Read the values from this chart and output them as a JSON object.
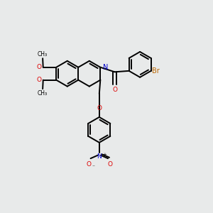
{
  "bg_color": "#e8eaea",
  "bond_color": "#000000",
  "N_color": "#0000cc",
  "O_color": "#dd0000",
  "Br_color": "#bb6600",
  "bw": 1.4,
  "R": 0.6,
  "figsize": [
    3.0,
    3.0
  ],
  "dpi": 100,
  "xlim": [
    0,
    10
  ],
  "ylim": [
    0,
    10
  ]
}
